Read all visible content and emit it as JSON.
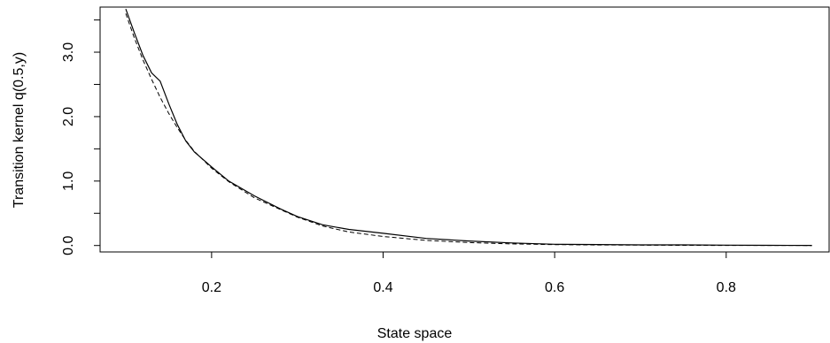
{
  "chart_data": {
    "type": "line",
    "title": "",
    "xlabel": "State space",
    "ylabel": "Transition kernel q(0.5,y)",
    "xlim": [
      0.07,
      0.92
    ],
    "ylim": [
      -0.1,
      3.7
    ],
    "x_ticks": [
      0.2,
      0.4,
      0.6,
      0.8
    ],
    "x_tick_labels": [
      "0.2",
      "0.4",
      "0.6",
      "0.8"
    ],
    "y_ticks": [
      0.0,
      0.5,
      1.0,
      1.5,
      2.0,
      2.5,
      3.0,
      3.5
    ],
    "y_tick_labels": [
      "0.0",
      "",
      "1.0",
      "",
      "2.0",
      "",
      "3.0",
      ""
    ],
    "grid": false,
    "legend": "none",
    "series": [
      {
        "style": "solid",
        "x": [
          0.1,
          0.11,
          0.12,
          0.13,
          0.14,
          0.15,
          0.16,
          0.17,
          0.18,
          0.2,
          0.22,
          0.25,
          0.28,
          0.3,
          0.33,
          0.36,
          0.4,
          0.45,
          0.5,
          0.55,
          0.6,
          0.65,
          0.7,
          0.75,
          0.8,
          0.85,
          0.9
        ],
        "y": [
          3.67,
          3.3,
          2.95,
          2.68,
          2.55,
          2.2,
          1.88,
          1.62,
          1.45,
          1.22,
          1.0,
          0.77,
          0.57,
          0.45,
          0.32,
          0.25,
          0.19,
          0.11,
          0.07,
          0.04,
          0.02,
          0.015,
          0.01,
          0.01,
          0.005,
          0.003,
          0.002
        ]
      },
      {
        "style": "dashed",
        "x": [
          0.1,
          0.11,
          0.12,
          0.13,
          0.14,
          0.15,
          0.16,
          0.17,
          0.18,
          0.2,
          0.22,
          0.25,
          0.28,
          0.3,
          0.33,
          0.36,
          0.4,
          0.45,
          0.5,
          0.55,
          0.6,
          0.65,
          0.7,
          0.75,
          0.8,
          0.85,
          0.9
        ],
        "y": [
          3.6,
          3.22,
          2.88,
          2.58,
          2.3,
          2.05,
          1.83,
          1.63,
          1.46,
          1.2,
          0.99,
          0.74,
          0.56,
          0.44,
          0.3,
          0.21,
          0.14,
          0.08,
          0.045,
          0.025,
          0.014,
          0.008,
          0.005,
          0.003,
          0.002,
          0.001,
          0.0005
        ]
      }
    ]
  }
}
